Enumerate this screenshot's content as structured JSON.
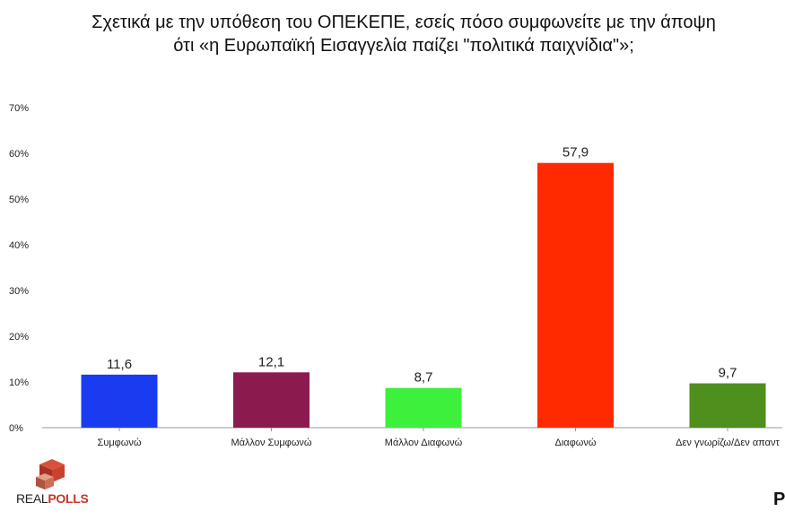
{
  "title_line1": "Σχετικά με την υπόθεση του ΟΠΕΚΕΠΕ, εσείς πόσο συμφωνείτε με την άποψη",
  "title_line2": "ότι «η Ευρωπαϊκή Εισαγγελία παίζει \"πολιτικά παιχνίδια\"»;",
  "logo": {
    "part1": "REAL",
    "part2": "POLLS"
  },
  "corner_text": "P",
  "chart_data": {
    "type": "bar",
    "categories": [
      "Συμφωνώ",
      "Μάλλον Συμφωνώ",
      "Μάλλον Διαφωνώ",
      "Διαφωνώ",
      "Δεν γνωρίζω/Δεν απαντ"
    ],
    "values": [
      11.6,
      12.1,
      8.7,
      57.9,
      9.7
    ],
    "value_labels": [
      "11,6",
      "12,1",
      "8,7",
      "57,9",
      "9,7"
    ],
    "colors": [
      "#1a3cf0",
      "#8b1a4f",
      "#3cf03c",
      "#ff2a00",
      "#4e8f1e"
    ],
    "yticks": [
      "0%",
      "10%",
      "20%",
      "30%",
      "40%",
      "50%",
      "60%",
      "70%"
    ],
    "ylim": [
      0,
      70
    ],
    "grid": false
  }
}
